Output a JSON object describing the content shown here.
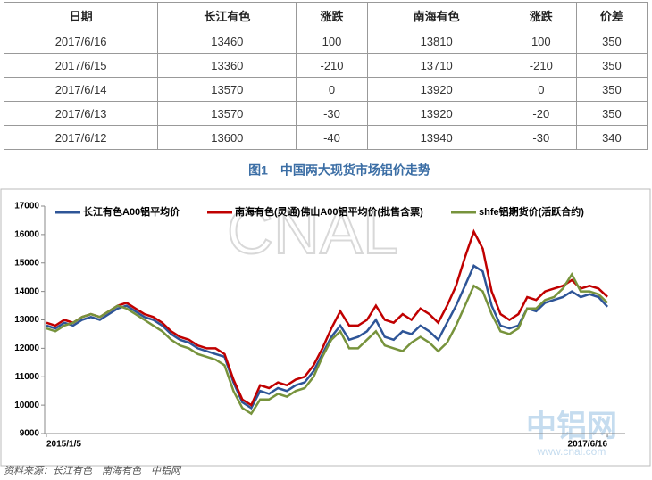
{
  "table": {
    "header": [
      "日期",
      "长江有色",
      "涨跌",
      "南海有色",
      "涨跌",
      "价差"
    ],
    "rows": [
      [
        "2017/6/16",
        "13460",
        "100",
        "13810",
        "100",
        "350"
      ],
      [
        "2017/6/15",
        "13360",
        "-210",
        "13710",
        "-210",
        "350"
      ],
      [
        "2017/6/14",
        "13570",
        "0",
        "13920",
        "0",
        "350"
      ],
      [
        "2017/6/13",
        "13570",
        "-30",
        "13920",
        "-20",
        "350"
      ],
      [
        "2017/6/12",
        "13600",
        "-40",
        "13940",
        "-30",
        "340"
      ]
    ]
  },
  "figure_caption": "图1　中国两大现货市场铝价走势",
  "watermarks": [
    "CNAL",
    "中铝网",
    "www.cnal.com"
  ],
  "source": "资料来源：长江有色　南海有色　中铝网",
  "chart_data": {
    "type": "line",
    "xlim": [
      0,
      65
    ],
    "xticks": [
      {
        "value": 0,
        "label": "2015/1/5"
      },
      {
        "value": 63,
        "label": "2017/6/16"
      }
    ],
    "ylim": [
      9000,
      17000
    ],
    "yticks": [
      9000,
      10000,
      11000,
      12000,
      13000,
      14000,
      15000,
      16000,
      17000
    ],
    "series": [
      {
        "name": "长江有色A00铝平均价",
        "color": "#2e5597",
        "values": [
          12800,
          12700,
          12900,
          12800,
          13000,
          13100,
          13000,
          13200,
          13400,
          13500,
          13300,
          13100,
          13000,
          12800,
          12500,
          12300,
          12200,
          12000,
          11900,
          11800,
          11700,
          10800,
          10100,
          9900,
          10500,
          10400,
          10600,
          10500,
          10700,
          10800,
          11200,
          11800,
          12400,
          12800,
          12300,
          12400,
          12600,
          13000,
          12400,
          12300,
          12600,
          12500,
          12800,
          12600,
          12300,
          12900,
          13500,
          14200,
          14900,
          14700,
          13500,
          12800,
          12700,
          12800,
          13400,
          13300,
          13600,
          13700,
          13800,
          14000,
          13800,
          13900,
          13800,
          13460
        ]
      },
      {
        "name": "南海有色(灵通)佛山A00铝平均价(批售含票)",
        "color": "#c00000",
        "values": [
          12900,
          12800,
          13000,
          12900,
          13100,
          13200,
          13100,
          13300,
          13500,
          13600,
          13400,
          13200,
          13100,
          12900,
          12600,
          12400,
          12300,
          12100,
          12000,
          12000,
          11800,
          10900,
          10200,
          10000,
          10700,
          10600,
          10800,
          10700,
          10900,
          11000,
          11400,
          12000,
          12700,
          13300,
          12800,
          12800,
          13000,
          13500,
          13000,
          12900,
          13200,
          13000,
          13400,
          13200,
          12900,
          13500,
          14200,
          15200,
          16100,
          15500,
          14000,
          13200,
          13000,
          13200,
          13800,
          13700,
          14000,
          14100,
          14200,
          14400,
          14100,
          14200,
          14100,
          13810
        ]
      },
      {
        "name": "shfe铝期货价(活跃合约)",
        "color": "#77933c",
        "values": [
          12700,
          12600,
          12800,
          12900,
          13100,
          13200,
          13100,
          13300,
          13500,
          13400,
          13200,
          13000,
          12800,
          12600,
          12300,
          12100,
          12000,
          11800,
          11700,
          11600,
          11400,
          10500,
          9900,
          9700,
          10200,
          10200,
          10400,
          10300,
          10500,
          10600,
          11000,
          11700,
          12300,
          12600,
          12000,
          12000,
          12300,
          12600,
          12100,
          12000,
          11900,
          12200,
          12400,
          12200,
          11900,
          12200,
          12800,
          13500,
          14200,
          14000,
          13200,
          12600,
          12500,
          12700,
          13400,
          13400,
          13700,
          13800,
          14100,
          14600,
          14000,
          14000,
          13900,
          13600
        ]
      }
    ]
  }
}
